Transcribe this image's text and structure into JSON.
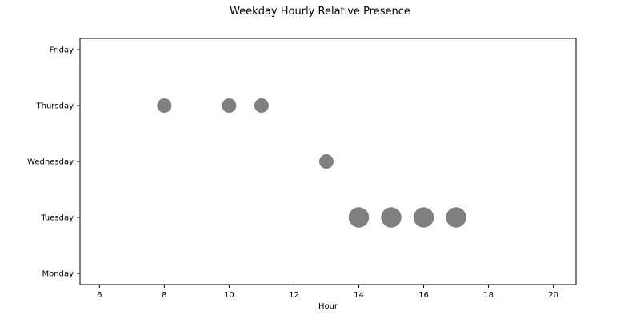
{
  "chart_data": {
    "type": "scatter",
    "title": "Weekday Hourly Relative Presence",
    "xlabel": "Hour",
    "ylabel": "",
    "xlim": [
      5.4,
      20.7
    ],
    "xticks": [
      6,
      8,
      10,
      12,
      14,
      16,
      18,
      20
    ],
    "xtick_labels": [
      "6",
      "8",
      "10",
      "12",
      "14",
      "16",
      "18",
      "20"
    ],
    "categories": [
      "Monday",
      "Tuesday",
      "Wednesday",
      "Thursday",
      "Friday"
    ],
    "grid": false,
    "marker_color": "#808080",
    "points": [
      {
        "day": "Thursday",
        "hour": 8,
        "size": 1.0
      },
      {
        "day": "Thursday",
        "hour": 10,
        "size": 1.0
      },
      {
        "day": "Thursday",
        "hour": 11,
        "size": 1.0
      },
      {
        "day": "Wednesday",
        "hour": 13,
        "size": 1.0
      },
      {
        "day": "Tuesday",
        "hour": 14,
        "size": 2.0
      },
      {
        "day": "Tuesday",
        "hour": 15,
        "size": 2.0
      },
      {
        "day": "Tuesday",
        "hour": 16,
        "size": 2.0
      },
      {
        "day": "Tuesday",
        "hour": 17,
        "size": 2.0
      }
    ]
  }
}
